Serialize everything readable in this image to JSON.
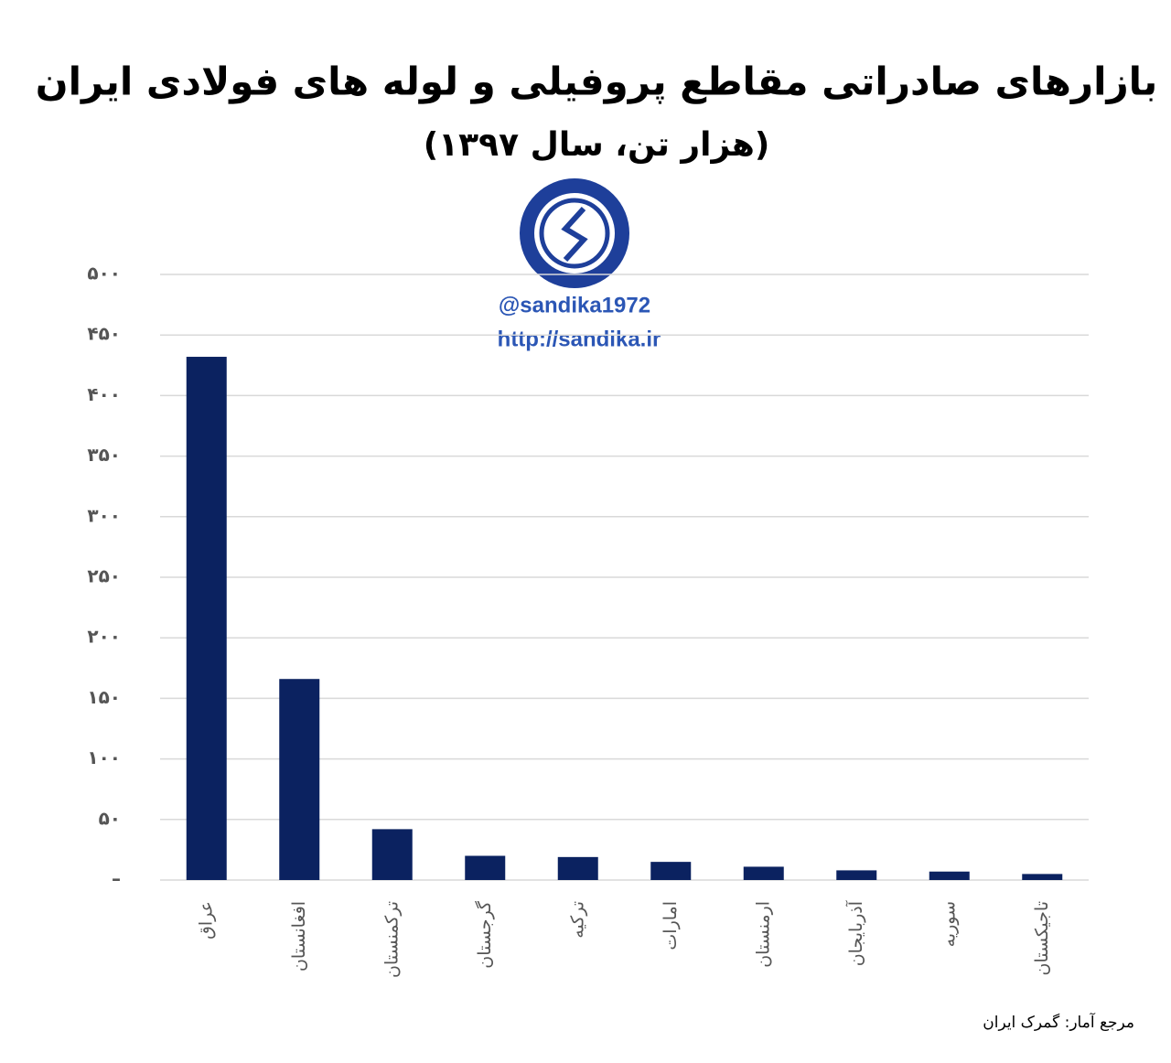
{
  "chart_data": {
    "type": "bar",
    "title": "بازارهای صادراتی مقاطع پروفیلی و لوله های فولادی ایران",
    "subtitle": "(هزار تن، سال ۱۳۹۷)",
    "watermark": [
      "@sandika1972",
      "http://sandika.ir"
    ],
    "source": "مرجع آمار: گمرک ایران",
    "categories": [
      "عراق",
      "افغانستان",
      "ترکمنستان",
      "گرجستان",
      "ترکیه",
      "امارات",
      "ارمنستان",
      "آذربایجان",
      "سوریه",
      "تاجیکستان"
    ],
    "values": [
      432,
      166,
      42,
      20,
      19,
      15,
      11,
      8,
      7,
      5
    ],
    "color": "#0b2260",
    "ylim": [
      0,
      500
    ],
    "yticks": [
      {
        "value": 0,
        "label": "–"
      },
      {
        "value": 50,
        "label": "۵۰"
      },
      {
        "value": 100,
        "label": "۱۰۰"
      },
      {
        "value": 150,
        "label": "۱۵۰"
      },
      {
        "value": 200,
        "label": "۲۰۰"
      },
      {
        "value": 250,
        "label": "۲۵۰"
      },
      {
        "value": 300,
        "label": "۳۰۰"
      },
      {
        "value": 350,
        "label": "۳۵۰"
      },
      {
        "value": 400,
        "label": "۴۰۰"
      },
      {
        "value": 450,
        "label": "۴۵۰"
      },
      {
        "value": 500,
        "label": "۵۰۰"
      }
    ],
    "grid": true
  }
}
